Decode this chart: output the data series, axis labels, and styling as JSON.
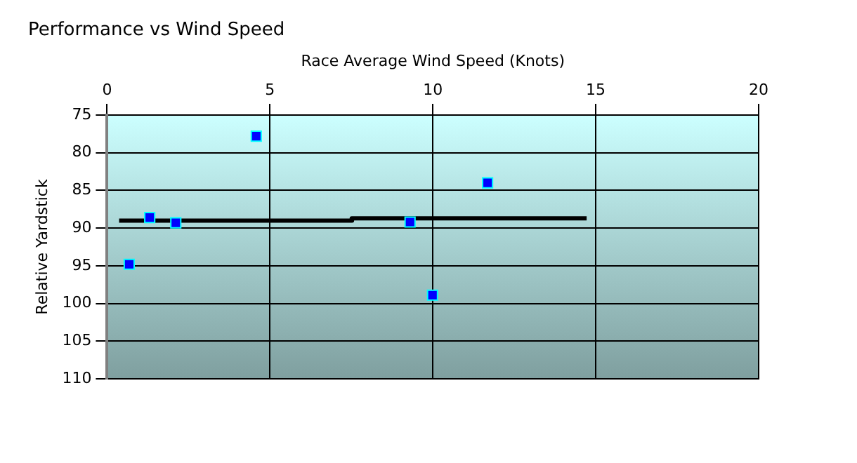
{
  "chart_data": {
    "type": "scatter",
    "title": "Performance vs Wind Speed",
    "xlabel": "Race Average Wind Speed (Knots)",
    "ylabel": "Relative Yardstick",
    "series": [
      {
        "color": "#0000ff",
        "marker": "square",
        "x": [
          0.68,
          1.31,
          2.11,
          4.58,
          9.3,
          9.99,
          11.68
        ],
        "values": [
          94.8,
          88.6,
          89.3,
          77.8,
          89.2,
          98.9,
          84.0
        ]
      },
      {
        "type": "line",
        "color": "#000000",
        "marker": "none",
        "x": [
          0.37,
          7.52,
          7.51,
          14.72
        ],
        "values": [
          89.0,
          89.0,
          88.7,
          88.7
        ]
      }
    ],
    "xlim": [
      0,
      20
    ],
    "xticks": [
      0,
      5,
      10,
      15,
      20
    ],
    "ylim": [
      110,
      75
    ],
    "yticks": [
      75,
      80,
      85,
      90,
      95,
      100,
      105,
      110
    ],
    "grid": true,
    "legend": false,
    "line_style": "solid"
  }
}
